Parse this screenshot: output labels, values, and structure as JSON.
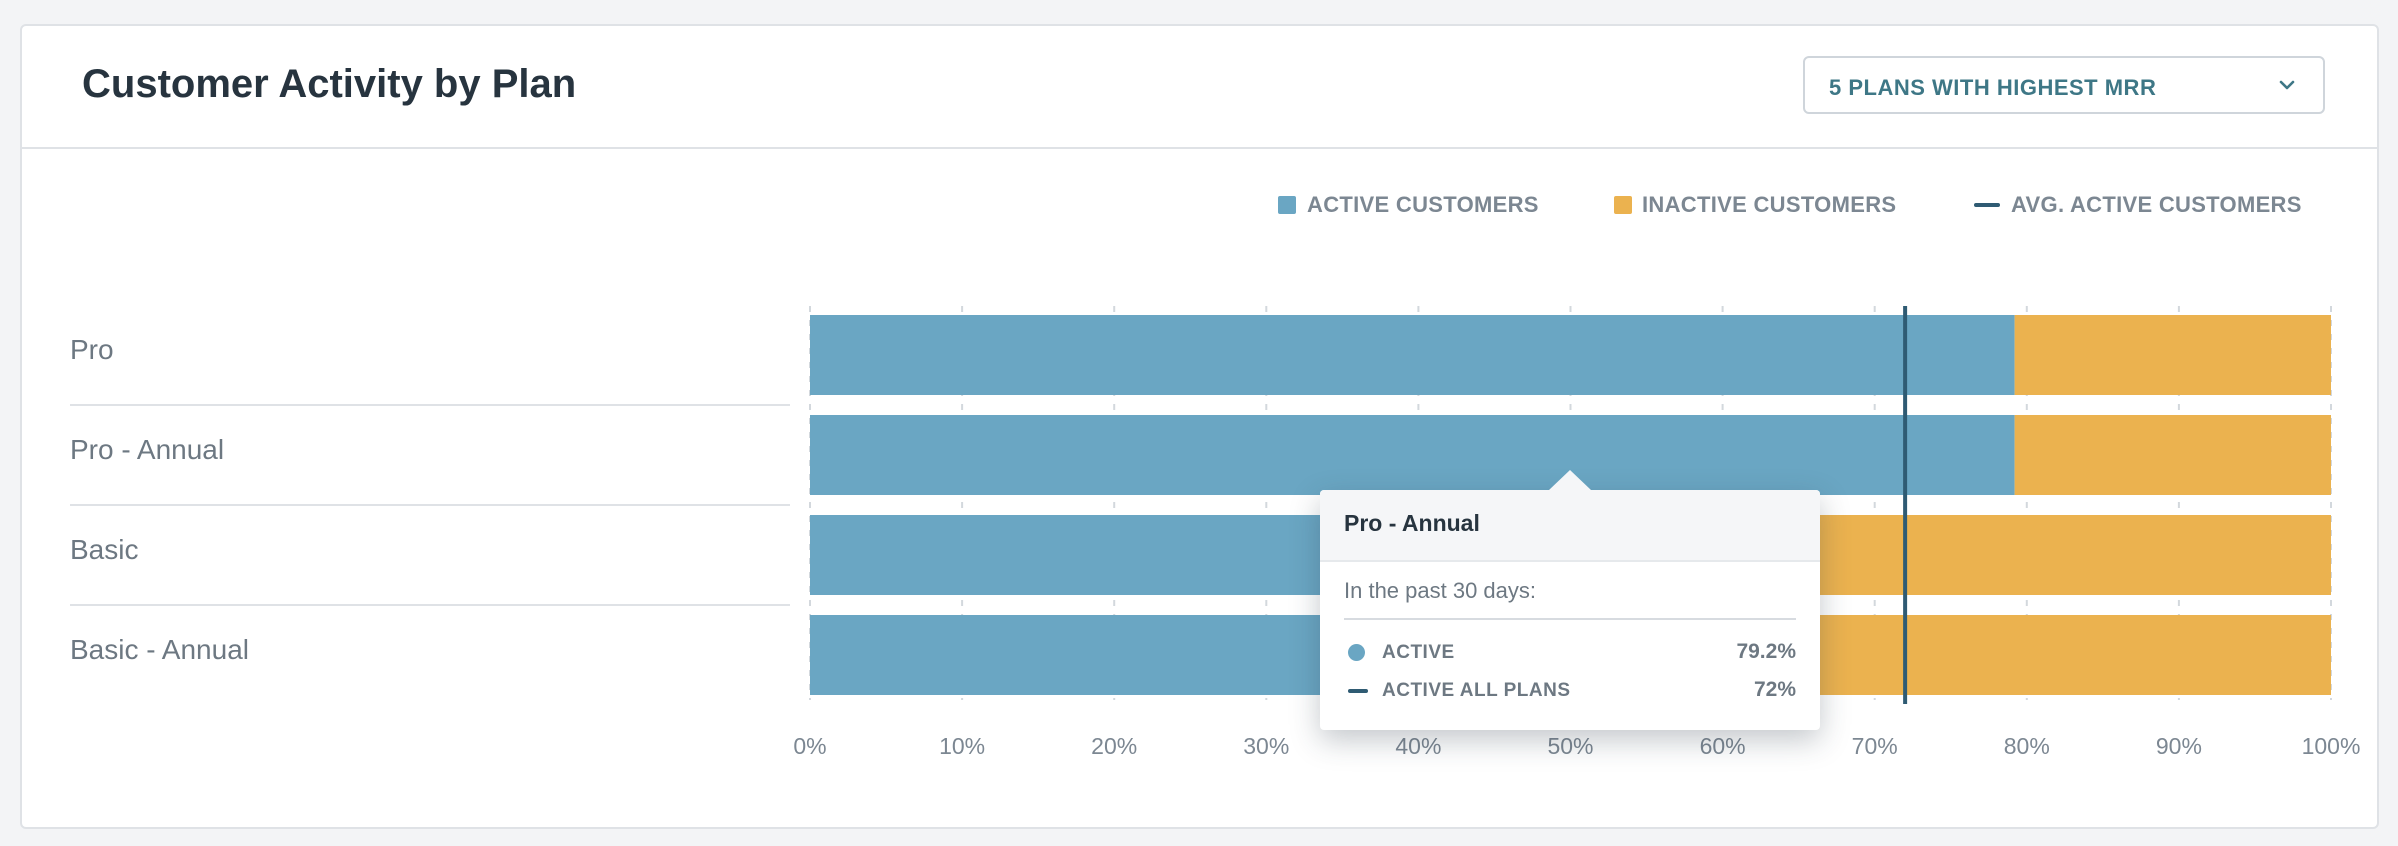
{
  "card": {
    "title": "Customer Activity by Plan",
    "dropdown": {
      "selected": "5 PLANS WITH HIGHEST MRR",
      "icon": "chevron-down-icon"
    }
  },
  "legend": {
    "active_label": "ACTIVE CUSTOMERS",
    "inactive_label": "INACTIVE CUSTOMERS",
    "avg_label": "AVG. ACTIVE CUSTOMERS"
  },
  "colors": {
    "active": "#6aa6c3",
    "inactive": "#ebb24f",
    "avg_line": "#2f5b73",
    "grid": "#d3d8dd",
    "tick_text": "#7c8792"
  },
  "chart_data": {
    "type": "bar",
    "orientation": "horizontal",
    "stacked": true,
    "title": "Customer Activity by Plan",
    "categories": [
      "Pro",
      "Pro - Annual",
      "Basic",
      "Basic - Annual"
    ],
    "series": [
      {
        "name": "ACTIVE CUSTOMERS",
        "values": [
          79.2,
          79.2,
          null,
          null
        ]
      },
      {
        "name": "INACTIVE CUSTOMERS",
        "values": [
          20.8,
          20.8,
          null,
          null
        ]
      }
    ],
    "reference_line": {
      "name": "AVG. ACTIVE CUSTOMERS",
      "value": 72
    },
    "xlim": [
      0,
      100
    ],
    "x_ticks": [
      0,
      10,
      20,
      30,
      40,
      50,
      60,
      70,
      80,
      90,
      100
    ],
    "x_tick_labels": [
      "0%",
      "10%",
      "20%",
      "30%",
      "40%",
      "50%",
      "60%",
      "70%",
      "80%",
      "90%",
      "100%"
    ],
    "legend_position": "top-right",
    "grid": "vertical dashed"
  },
  "tooltip": {
    "title": "Pro - Annual",
    "subtitle": "In the past 30 days:",
    "rows": [
      {
        "label": "ACTIVE",
        "value": "79.2%"
      },
      {
        "label": "ACTIVE ALL PLANS",
        "value": "72%"
      }
    ]
  }
}
